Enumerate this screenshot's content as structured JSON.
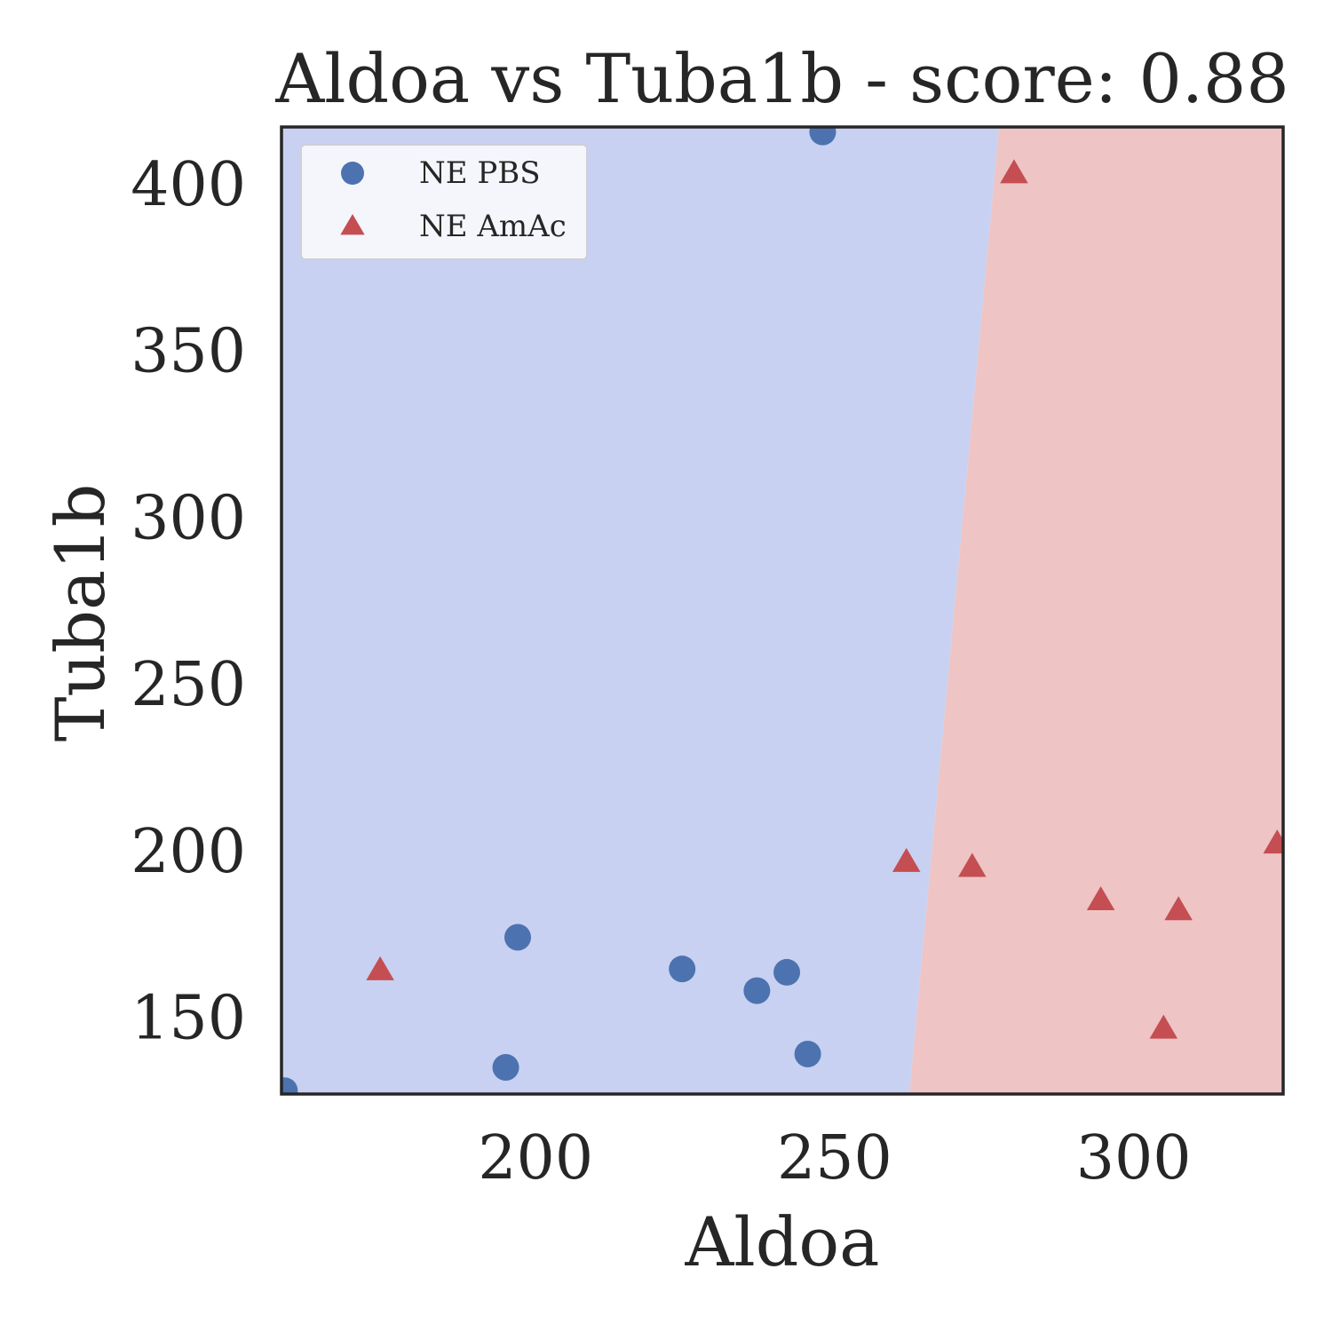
{
  "chart_data": {
    "type": "scatter",
    "title": "Aldoa vs Tuba1b - score: 0.88",
    "xlabel": "Aldoa",
    "ylabel": "Tuba1b",
    "xlim": [
      157.5,
      325
    ],
    "ylim": [
      127,
      417
    ],
    "xticks": [
      200,
      250,
      300
    ],
    "yticks": [
      150,
      200,
      250,
      300,
      350,
      400
    ],
    "grid": false,
    "legend": "top-left",
    "decision_boundary": {
      "points": [
        [
          262.5,
          127
        ],
        [
          277.5,
          417
        ]
      ],
      "left_region": "NE PBS",
      "right_region": "NE AmAc",
      "left_color": "#c8d1f1",
      "right_color": "#eec4c4"
    },
    "series": [
      {
        "name": "NE PBS",
        "marker": "circle",
        "color": "#4c72b0",
        "points": [
          [
            158,
            128
          ],
          [
            195,
            135
          ],
          [
            197,
            174
          ],
          [
            224.5,
            164.5
          ],
          [
            237,
            158
          ],
          [
            242,
            163.5
          ],
          [
            245.5,
            139
          ],
          [
            248,
            415.5
          ]
        ]
      },
      {
        "name": "NE AmAc",
        "marker": "triangle",
        "color": "#c44e52",
        "points": [
          [
            174,
            164
          ],
          [
            262,
            196.5
          ],
          [
            273,
            195
          ],
          [
            280,
            403
          ],
          [
            294.5,
            185
          ],
          [
            307.5,
            182
          ],
          [
            305,
            146.5
          ],
          [
            324,
            202
          ]
        ]
      }
    ]
  }
}
